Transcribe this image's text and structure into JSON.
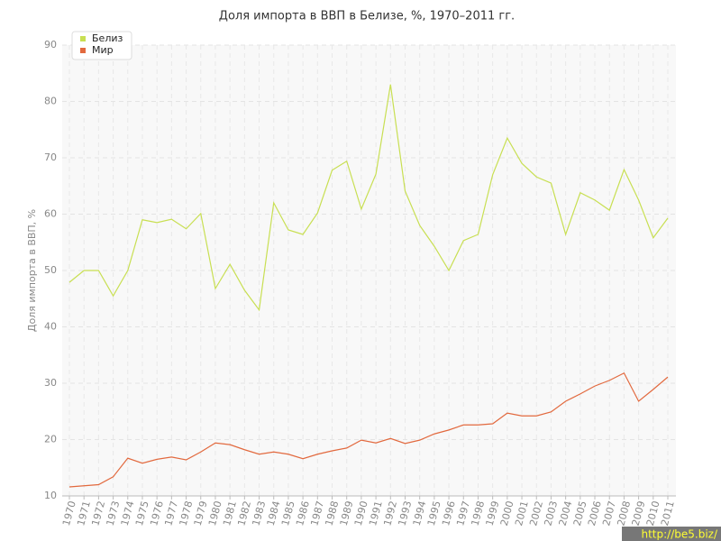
{
  "chart_data": {
    "type": "line",
    "title": "Доля импорта в ВВП в Белизе, %, 1970–2011 гг.",
    "y_label": "Доля импорта в ВВП, %",
    "categories": [
      "1970",
      "1971",
      "1972",
      "1973",
      "1974",
      "1975",
      "1976",
      "1977",
      "1978",
      "1979",
      "1980",
      "1981",
      "1982",
      "1983",
      "1984",
      "1985",
      "1986",
      "1987",
      "1988",
      "1989",
      "1990",
      "1991",
      "1992",
      "1993",
      "1994",
      "1995",
      "1996",
      "1997",
      "1998",
      "1999",
      "2000",
      "2001",
      "2002",
      "2003",
      "2004",
      "2005",
      "2006",
      "2007",
      "2008",
      "2009",
      "2010",
      "2011"
    ],
    "series": [
      {
        "name": "Белиз",
        "color": "#c8df52",
        "values": [
          47.9,
          50,
          50,
          45.5,
          50,
          59,
          58.5,
          59.1,
          57.4,
          60.1,
          46.8,
          51.1,
          46.5,
          43,
          62,
          57.2,
          56.4,
          60.2,
          67.8,
          69.4,
          60.9,
          67.1,
          83,
          64.1,
          58,
          54.3,
          50,
          55.3,
          56.4,
          67,
          73.5,
          69,
          66.6,
          65.5,
          56.4,
          63.8,
          62.5,
          60.7,
          67.9,
          62.5,
          55.8,
          59.3
        ]
      },
      {
        "name": "Мир",
        "color": "#e2693e",
        "values": [
          11.6,
          11.8,
          12,
          13.4,
          16.7,
          15.8,
          16.5,
          16.9,
          16.4,
          17.8,
          19.4,
          19.1,
          18.2,
          17.4,
          17.8,
          17.4,
          16.6,
          17.4,
          18,
          18.5,
          19.9,
          19.4,
          20.2,
          19.3,
          19.9,
          21,
          21.7,
          22.6,
          22.6,
          22.8,
          24.7,
          24.2,
          24.2,
          24.9,
          26.8,
          28.1,
          29.5,
          30.5,
          31.8,
          26.8,
          28.9,
          31.1
        ]
      }
    ],
    "ylim": [
      10,
      90
    ],
    "yticks": [
      10,
      20,
      30,
      40,
      50,
      60,
      70,
      80,
      90
    ],
    "grid": true,
    "legend": "top-left"
  },
  "watermark": "http://be5.biz/"
}
